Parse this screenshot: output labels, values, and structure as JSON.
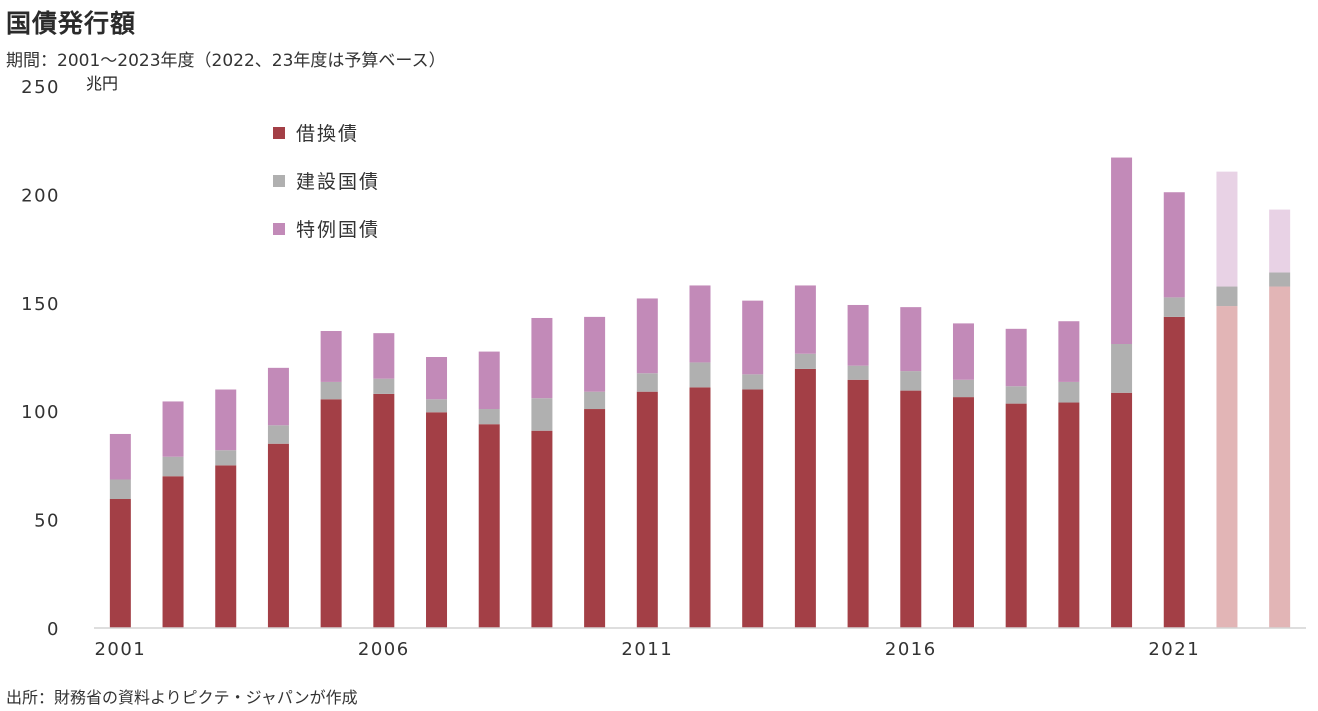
{
  "title": "国債発行額",
  "subtitle": "期間：2001～2023年度（2022、23年度は予算ベース）",
  "source": "出所：財務省の資料よりピクテ・ジャパンが作成",
  "chart_data": {
    "type": "bar",
    "stacked": true,
    "unit": "兆円",
    "ylim": [
      0,
      250
    ],
    "yticks": [
      0,
      50,
      100,
      150,
      200,
      250
    ],
    "categories": [
      "2001",
      "2002",
      "2003",
      "2004",
      "2005",
      "2006",
      "2007",
      "2008",
      "2009",
      "2010",
      "2011",
      "2012",
      "2013",
      "2014",
      "2015",
      "2016",
      "2017",
      "2018",
      "2019",
      "2020",
      "2021",
      "2022",
      "2023"
    ],
    "xtick_labels": [
      "2001",
      "2006",
      "2011",
      "2016",
      "2021"
    ],
    "series": [
      {
        "name": "借換債",
        "color": "#a33f46",
        "budget_color": "#e2b5b6",
        "values": [
          59.5,
          70,
          75,
          85,
          105.5,
          108,
          99.5,
          94,
          91,
          101,
          109,
          111,
          110,
          119.5,
          114.5,
          109.5,
          106.5,
          103.5,
          104,
          108.5,
          143.5,
          148.5,
          157.5
        ]
      },
      {
        "name": "建設国債",
        "color": "#b0b0b0",
        "budget_color": "#b0b0b0",
        "values": [
          9,
          9,
          7,
          8.5,
          8,
          7,
          6,
          7,
          15,
          8,
          8.5,
          11.5,
          7,
          7,
          6.5,
          9,
          8,
          8,
          9.5,
          22.5,
          9,
          9,
          6.5
        ]
      },
      {
        "name": "特例国債",
        "color": "#c28ab8",
        "budget_color": "#e8d2e5",
        "values": [
          21,
          25.5,
          28,
          26.5,
          23.5,
          21,
          19.5,
          26.5,
          37,
          34.5,
          34.5,
          35.5,
          34,
          31.5,
          28,
          29.5,
          26,
          26.5,
          28,
          86,
          48.5,
          53,
          29
        ]
      }
    ],
    "budget_categories": [
      "2022",
      "2023"
    ],
    "grid": false,
    "legend_position": "top-left"
  }
}
